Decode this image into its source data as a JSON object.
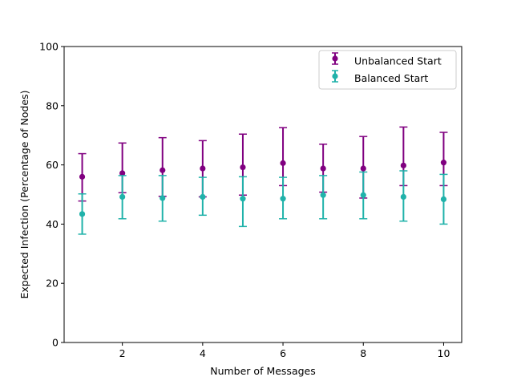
{
  "chart_data": {
    "type": "errorbar",
    "xlabel": "Number of Messages",
    "ylabel": "Expected Infection (Percentage of Nodes)",
    "xlim": [
      0.55,
      10.45
    ],
    "ylim": [
      0,
      100
    ],
    "xticks": [
      2,
      4,
      6,
      8,
      10
    ],
    "yticks": [
      0,
      20,
      40,
      60,
      80,
      100
    ],
    "grid": false,
    "legend_position": "top-right",
    "x": [
      1,
      2,
      3,
      4,
      5,
      6,
      7,
      8,
      9,
      10
    ],
    "series": [
      {
        "name": "Unbalanced Start",
        "color": "#800080",
        "marker": "circle",
        "values": [
          56.0,
          57.2,
          58.2,
          58.8,
          59.2,
          60.6,
          58.8,
          58.8,
          59.8,
          60.8
        ],
        "lower": [
          47.8,
          50.6,
          49.4,
          49.2,
          49.8,
          53.0,
          50.8,
          48.8,
          53.0,
          53.0
        ],
        "upper": [
          63.8,
          67.4,
          69.2,
          68.2,
          70.4,
          72.6,
          67.0,
          69.6,
          72.8,
          71.0
        ]
      },
      {
        "name": "Balanced Start",
        "color": "#20b2aa",
        "marker": "circle",
        "values": [
          43.4,
          49.2,
          48.8,
          49.2,
          48.6,
          48.6,
          49.8,
          49.8,
          49.2,
          48.4
        ],
        "lower": [
          36.6,
          41.8,
          41.0,
          43.0,
          39.2,
          41.8,
          41.8,
          41.8,
          41.0,
          40.0
        ],
        "upper": [
          50.2,
          56.4,
          56.4,
          55.8,
          56.0,
          55.8,
          56.4,
          57.6,
          58.0,
          56.8
        ]
      }
    ]
  }
}
